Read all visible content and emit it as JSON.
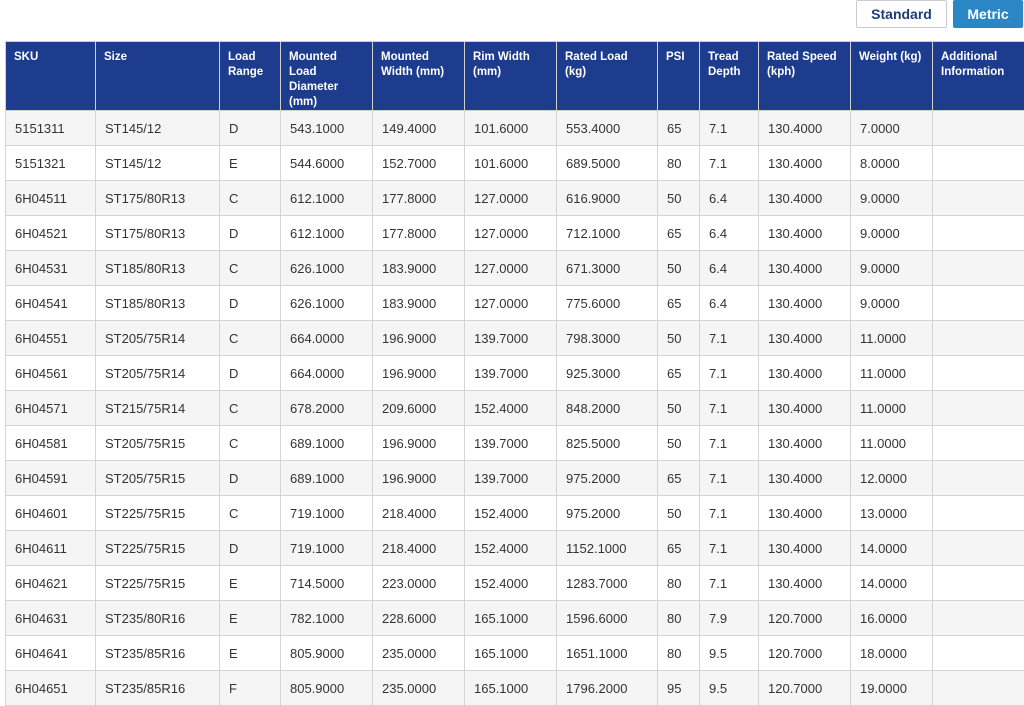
{
  "buttons": [
    "Standard",
    "Metric"
  ],
  "table": {
    "headers": [
      "SKU",
      "Size",
      "Load Range",
      "Mounted Load Diameter (mm)",
      "Mounted Width (mm)",
      "Rim Width (mm)",
      "Rated Load (kg)",
      "PSI",
      "Tread Depth",
      "Rated Speed (kph)",
      "Weight (kg)",
      "Additional Information"
    ],
    "rows": [
      [
        "5151311",
        "ST145/12",
        "D",
        "543.1000",
        "149.4000",
        "101.6000",
        "553.4000",
        "65",
        "7.1",
        "130.4000",
        "7.0000"
      ],
      [
        "5151321",
        "ST145/12",
        "E",
        "544.6000",
        "152.7000",
        "101.6000",
        "689.5000",
        "80",
        "7.1",
        "130.4000",
        "8.0000"
      ],
      [
        "6H04511",
        "ST175/80R13",
        "C",
        "612.1000",
        "177.8000",
        "127.0000",
        "616.9000",
        "50",
        "6.4",
        "130.4000",
        "9.0000"
      ],
      [
        "6H04521",
        "ST175/80R13",
        "D",
        "612.1000",
        "177.8000",
        "127.0000",
        "712.1000",
        "65",
        "6.4",
        "130.4000",
        "9.0000"
      ],
      [
        "6H04531",
        "ST185/80R13",
        "C",
        "626.1000",
        "183.9000",
        "127.0000",
        "671.3000",
        "50",
        "6.4",
        "130.4000",
        "9.0000"
      ],
      [
        "6H04541",
        "ST185/80R13",
        "D",
        "626.1000",
        "183.9000",
        "127.0000",
        "775.6000",
        "65",
        "6.4",
        "130.4000",
        "9.0000"
      ],
      [
        "6H04551",
        "ST205/75R14",
        "C",
        "664.0000",
        "196.9000",
        "139.7000",
        "798.3000",
        "50",
        "7.1",
        "130.4000",
        "11.0000"
      ],
      [
        "6H04561",
        "ST205/75R14",
        "D",
        "664.0000",
        "196.9000",
        "139.7000",
        "925.3000",
        "65",
        "7.1",
        "130.4000",
        "11.0000"
      ],
      [
        "6H04571",
        "ST215/75R14",
        "C",
        "678.2000",
        "209.6000",
        "152.4000",
        "848.2000",
        "50",
        "7.1",
        "130.4000",
        "11.0000"
      ],
      [
        "6H04581",
        "ST205/75R15",
        "C",
        "689.1000",
        "196.9000",
        "139.7000",
        "825.5000",
        "50",
        "7.1",
        "130.4000",
        "11.0000"
      ],
      [
        "6H04591",
        "ST205/75R15",
        "D",
        "689.1000",
        "196.9000",
        "139.7000",
        "975.2000",
        "65",
        "7.1",
        "130.4000",
        "12.0000"
      ],
      [
        "6H04601",
        "ST225/75R15",
        "C",
        "719.1000",
        "218.4000",
        "152.4000",
        "975.2000",
        "50",
        "7.1",
        "130.4000",
        "13.0000"
      ],
      [
        "6H04611",
        "ST225/75R15",
        "D",
        "719.1000",
        "218.4000",
        "152.4000",
        "1152.1000",
        "65",
        "7.1",
        "130.4000",
        "14.0000"
      ],
      [
        "6H04621",
        "ST225/75R15",
        "E",
        "714.5000",
        "223.0000",
        "152.4000",
        "1283.7000",
        "80",
        "7.1",
        "130.4000",
        "14.0000"
      ],
      [
        "6H04631",
        "ST235/80R16",
        "E",
        "782.1000",
        "228.6000",
        "165.1000",
        "1596.6000",
        "80",
        "7.9",
        "120.7000",
        "16.0000"
      ],
      [
        "6H04641",
        "ST235/85R16",
        "E",
        "805.9000",
        "235.0000",
        "165.1000",
        "1651.1000",
        "80",
        "9.5",
        "120.7000",
        "18.0000"
      ],
      [
        "6H04651",
        "ST235/85R16",
        "F",
        "805.9000",
        "235.0000",
        "165.1000",
        "1796.2000",
        "95",
        "9.5",
        "120.7000",
        "19.0000"
      ]
    ]
  }
}
